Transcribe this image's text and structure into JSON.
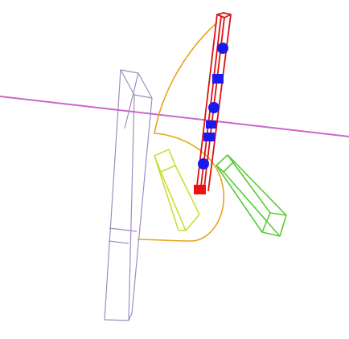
{
  "scene": {
    "background": "#ffffff",
    "objects": [
      {
        "name": "reference-line",
        "kind": "line",
        "color": "#cc66cc"
      },
      {
        "name": "lavender-column-wireframe",
        "kind": "wire-box",
        "color": "#9b8fc0"
      },
      {
        "name": "orange-sweep-curve",
        "kind": "curve",
        "color": "#e8a317"
      },
      {
        "name": "yellow-green-block-wireframe",
        "kind": "wire-box",
        "color": "#ccdd33"
      },
      {
        "name": "green-block-wireframe",
        "kind": "wire-box",
        "color": "#55cc33"
      },
      {
        "name": "red-rod-wireframe",
        "kind": "wire-box",
        "color": "#dd1111"
      },
      {
        "name": "blue-marker-points",
        "kind": "markers",
        "color": "#1a1aee",
        "count": 6
      }
    ]
  }
}
